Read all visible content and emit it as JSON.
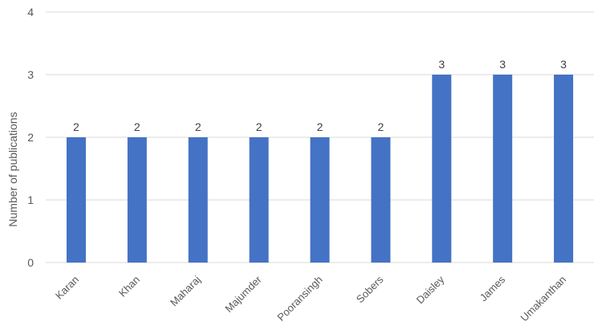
{
  "chart_data": {
    "type": "bar",
    "title": "",
    "xlabel": "",
    "ylabel": "Number of publications",
    "categories": [
      "Karan",
      "Khan",
      "Maharaj",
      "Majumder",
      "Pooransingh",
      "Sobers",
      "Daisley",
      "James",
      "Umakanthan"
    ],
    "values": [
      2,
      2,
      2,
      2,
      2,
      2,
      3,
      3,
      3
    ],
    "ylim": [
      0,
      4
    ],
    "yticks": [
      0,
      1,
      2,
      3,
      4
    ],
    "grid": true,
    "legend": "none",
    "data_labels": true,
    "bar_color": "#4472C4",
    "grid_color": "#D9D9D9"
  }
}
